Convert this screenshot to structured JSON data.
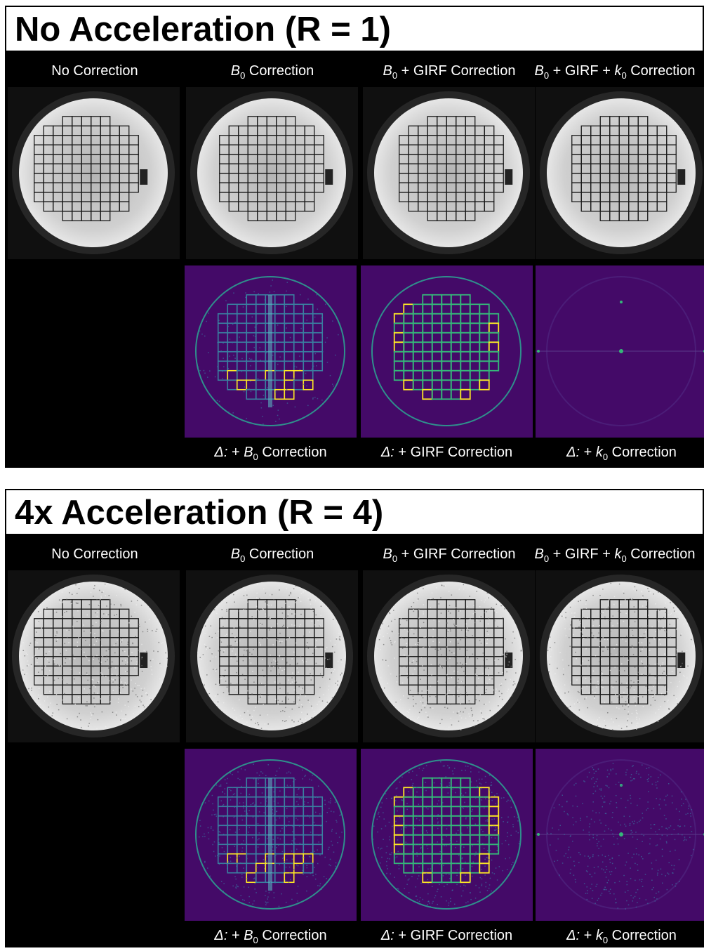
{
  "panels": [
    {
      "title": "No Acceleration (R = 1)",
      "columns": {
        "c1": {
          "text": "No Correction"
        },
        "c2": {
          "pre": "B",
          "sub": "0",
          "post": " Correction"
        },
        "c3": {
          "pre": "B",
          "sub": "0",
          "post": " + GIRF Correction"
        },
        "c4": {
          "pre": "B",
          "sub": "0",
          "mid": " + GIRF + ",
          "k": "k",
          "ksub": "0",
          "post": " Correction"
        }
      },
      "diffs": {
        "d1": {
          "delta": "Δ:",
          "plus": " + ",
          "sym": "B",
          "sub": "0",
          "post": " Correction"
        },
        "d2": {
          "delta": "Δ:",
          "text": " + GIRF Correction"
        },
        "d3": {
          "delta": "Δ:",
          "plus": " + ",
          "sym": "k",
          "sub": "0",
          "post": " Correction"
        }
      }
    },
    {
      "title": "4x Acceleration (R = 4)",
      "columns": {
        "c1": {
          "text": "No Correction"
        },
        "c2": {
          "pre": "B",
          "sub": "0",
          "post": " Correction"
        },
        "c3": {
          "pre": "B",
          "sub": "0",
          "post": " + GIRF Correction"
        },
        "c4": {
          "pre": "B",
          "sub": "0",
          "mid": " + GIRF + ",
          "k": "k",
          "ksub": "0",
          "post": " Correction"
        }
      },
      "diffs": {
        "d1": {
          "delta": "Δ:",
          "plus": " + ",
          "sym": "B",
          "sub": "0",
          "post": " Correction"
        },
        "d2": {
          "delta": "Δ:",
          "text": " + GIRF Correction"
        },
        "d3": {
          "delta": "Δ:",
          "plus": " + ",
          "sym": "k",
          "sub": "0",
          "post": " Correction"
        }
      }
    }
  ],
  "colors": {
    "panel_bg": "#000000",
    "diff_bg": "#440a68",
    "diff_edge": "#35b779",
    "diff_hot": "#fde725",
    "grid_line": "#1a1a1a"
  }
}
